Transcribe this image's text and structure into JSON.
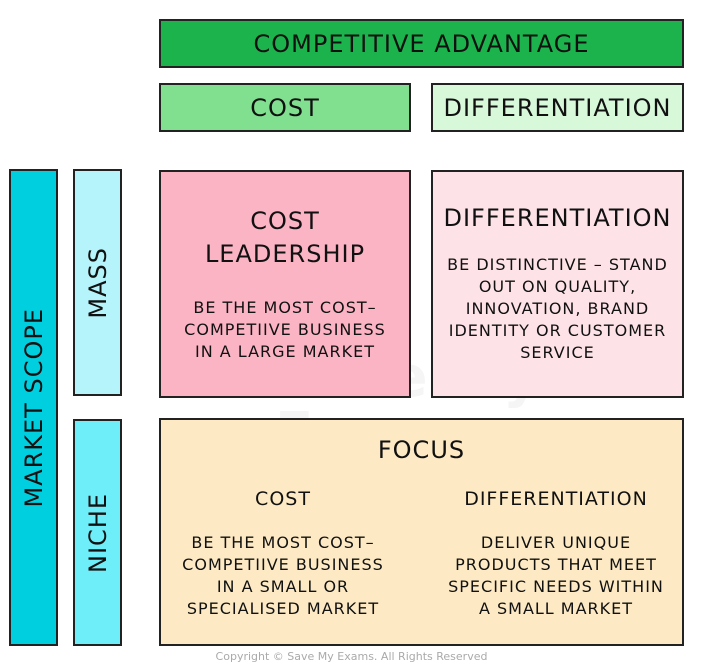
{
  "header": {
    "title": "COMPETITIVE ADVANTAGE",
    "cost": "COST",
    "differentiation": "DIFFERENTIATION"
  },
  "rows": {
    "market_scope": "MARKET SCOPE",
    "mass": "MASS",
    "niche": "NICHE"
  },
  "cells": {
    "cost_leadership": {
      "title_1": "COST",
      "title_2": "LEADERSHIP",
      "desc": [
        "BE THE MOST COST–",
        "COMPETIIVE BUSINESS",
        "IN A LARGE MARKET"
      ]
    },
    "differentiation": {
      "title": "DIFFERENTIATION",
      "desc": [
        "BE DISTINCTIVE – STAND",
        "OUT ON QUALITY,",
        "INNOVATION, BRAND",
        "IDENTITY OR CUSTOMER",
        "SERVICE"
      ]
    },
    "focus": {
      "title": "FOCUS",
      "cost": {
        "title": "COST",
        "desc": [
          "BE THE MOST COST–",
          "COMPETIIVE BUSINESS",
          "IN A SMALL OR",
          "SPECIALISED MARKET"
        ]
      },
      "differentiation": {
        "title": "DIFFERENTIATION",
        "desc": [
          "DELIVER UNIQUE",
          "PRODUCTS THAT MEET",
          "SPECIFIC NEEDS WITHIN",
          "A SMALL MARKET"
        ]
      }
    }
  },
  "watermark": "Save My Exams",
  "copyright": "Copyright © Save My Exams. All Rights Reserved",
  "colors": {
    "advantage": "#1cb34c",
    "cost": "#80e08f",
    "diff": "#d8f8da",
    "cost_leadership": "#fbb0c1",
    "differentiation": "#fde2e7",
    "focus": "#fde9c1",
    "market_scope": "#00cfe0",
    "mass": "#b6f4fb",
    "niche": "#6deef8"
  }
}
